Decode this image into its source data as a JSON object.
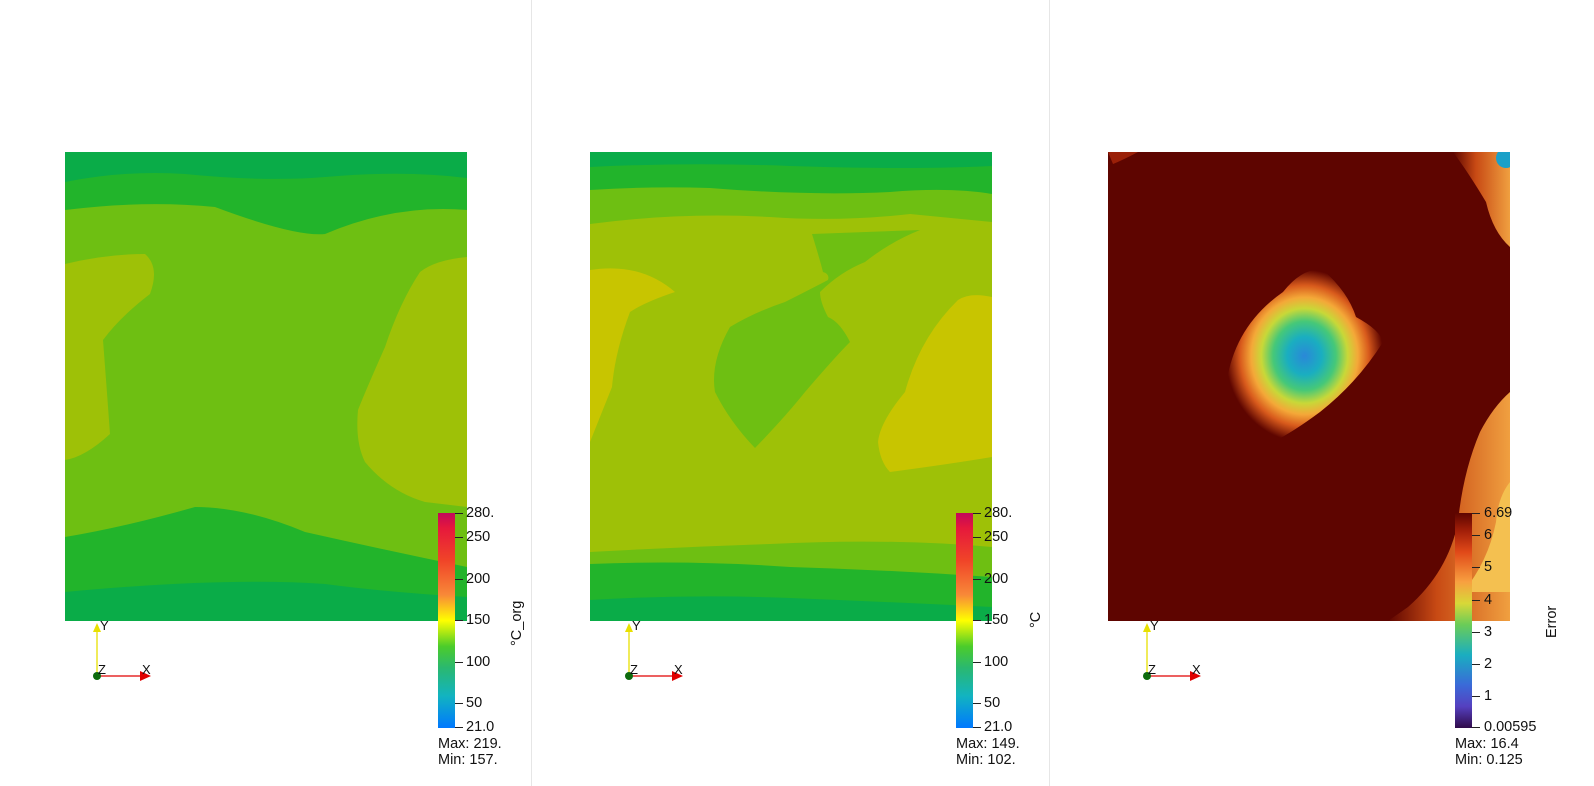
{
  "panels": [
    {
      "id": "original",
      "colorbar": {
        "title": "°C_org",
        "ticks": [
          "280.",
          "250",
          "200",
          "150",
          "100",
          "50",
          "21.0"
        ],
        "tick_values": [
          280,
          250,
          200,
          150,
          100,
          50,
          21
        ],
        "range": [
          21,
          280
        ]
      },
      "stats": {
        "max": "Max: 219.",
        "min": "Min: 157."
      },
      "axes": {
        "y": "Y",
        "z": "Z",
        "x": "X"
      }
    },
    {
      "id": "predicted",
      "colorbar": {
        "title": "°C",
        "ticks": [
          "280.",
          "250",
          "200",
          "150",
          "100",
          "50",
          "21.0"
        ],
        "tick_values": [
          280,
          250,
          200,
          150,
          100,
          50,
          21
        ],
        "range": [
          21,
          280
        ]
      },
      "stats": {
        "max": "Max: 149.",
        "min": "Min: 102."
      },
      "axes": {
        "y": "Y",
        "z": "Z",
        "x": "X"
      }
    },
    {
      "id": "error",
      "colorbar": {
        "title": "Error",
        "ticks": [
          "6.69",
          "6",
          "5",
          "4",
          "3",
          "2",
          "1",
          "0.00595"
        ],
        "tick_values": [
          6.69,
          6,
          5,
          4,
          3,
          2,
          1,
          0.00595
        ],
        "range": [
          0.00595,
          6.69
        ]
      },
      "stats": {
        "max": "Max: 16.4",
        "min": "Min: 0.125"
      },
      "axes": {
        "y": "Y",
        "z": "Z",
        "x": "X"
      }
    }
  ],
  "colors": {
    "dark_green": "#0aac48",
    "mid_green": "#22b42b",
    "light_green": "#6ebf12",
    "yellow_green": "#9ec107",
    "yellow": "#c8c500",
    "error_dark": "#5e0500"
  }
}
